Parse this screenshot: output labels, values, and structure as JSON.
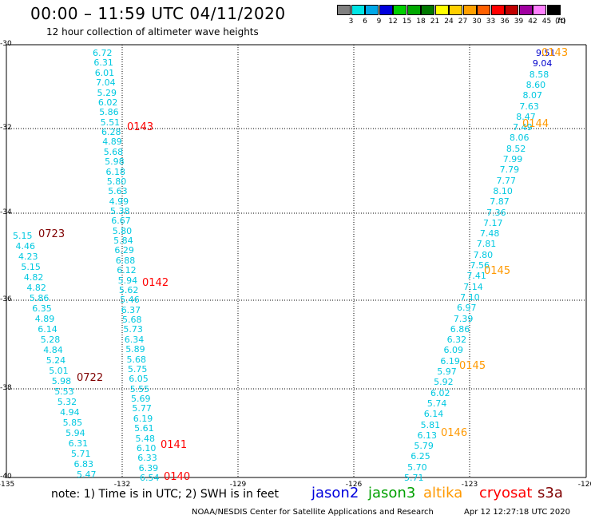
{
  "header": {
    "title": "00:00 – 11:59 UTC 04/11/2020",
    "subtitle": "12 hour collection of altimeter wave heights"
  },
  "colorbar": {
    "labels": [
      "3",
      "6",
      "9",
      "12",
      "15",
      "18",
      "21",
      "24",
      "27",
      "30",
      "33",
      "36",
      "39",
      "42",
      "45",
      "70"
    ],
    "unit": "(ft)",
    "colors": [
      "#808080",
      "#00e5e5",
      "#00a8e8",
      "#0000dd",
      "#00d000",
      "#00a800",
      "#007800",
      "#ffff00",
      "#ffd000",
      "#ffa000",
      "#ff6000",
      "#ff0000",
      "#c00000",
      "#a000a0",
      "#ff80ff",
      "#000000"
    ]
  },
  "axes": {
    "y_labels": [
      "-30",
      "-32",
      "-34",
      "-36",
      "-38",
      "-40"
    ],
    "x_labels": [
      "-135",
      "-132",
      "-129",
      "-126",
      "-123",
      "-120"
    ]
  },
  "tracks": [
    {
      "name": "track-1",
      "color": "#00c8e0",
      "values": [
        "6.72",
        "6.31",
        "6.01",
        "7.04",
        "5.29",
        "6.02",
        "5.86",
        "5.51",
        "6.28",
        "4.89",
        "5.68",
        "5.98",
        "6.18",
        "5.80",
        "5.63",
        "4.99",
        "5.38",
        "6.67",
        "5.80",
        "5.84",
        "6.29",
        "6.88",
        "6.12",
        "5.94",
        "5.62",
        "5.46",
        "6.37",
        "5.68",
        "5.73",
        "6.34",
        "5.89",
        "5.68",
        "5.75",
        "6.05",
        "5.55",
        "5.69",
        "5.77",
        "6.19",
        "5.61",
        "5.48",
        "6.10",
        "6.33",
        "6.39",
        "6.54"
      ]
    },
    {
      "name": "track-2",
      "color": "#00c8e0",
      "values": [
        "5.15",
        "4.46",
        "4.23",
        "5.15",
        "4.82",
        "4.82",
        "5.86",
        "6.35",
        "4.89",
        "6.14",
        "5.28",
        "4.84",
        "5.24",
        "5.01",
        "5.98",
        "5.53",
        "5.32",
        "4.94",
        "5.85",
        "5.94",
        "6.31",
        "5.71",
        "6.83",
        "5.47"
      ]
    },
    {
      "name": "track-3",
      "color": "#00c8e0",
      "values": [
        "9.51",
        "9.04",
        "8.58",
        "8.60",
        "8.07",
        "7.63",
        "8.47",
        "7.49",
        "8.06",
        "8.52",
        "7.99",
        "7.79",
        "7.77",
        "8.10",
        "7.87",
        "7.36",
        "7.17",
        "7.48",
        "7.81",
        "7.80",
        "7.56",
        "7.41",
        "7.14",
        "7.10",
        "6.97",
        "7.39",
        "6.86",
        "6.32",
        "6.09",
        "6.19",
        "5.97",
        "5.92",
        "6.02",
        "5.74",
        "6.14",
        "5.81",
        "6.13",
        "5.79",
        "6.25",
        "5.70",
        "5.71"
      ]
    }
  ],
  "time_tags": [
    {
      "label": "0143",
      "color": "#ff0000"
    },
    {
      "label": "0142",
      "color": "#ff0000"
    },
    {
      "label": "0141",
      "color": "#ff0000"
    },
    {
      "label": "0140",
      "color": "#ff0000"
    },
    {
      "label": "0723",
      "color": "#800000"
    },
    {
      "label": "0722",
      "color": "#800000"
    },
    {
      "label": "0143",
      "color": "#ff9900"
    },
    {
      "label": "0144",
      "color": "#ff9900"
    },
    {
      "label": "0145",
      "color": "#ff9900"
    },
    {
      "label": "0145",
      "color": "#ff9900"
    },
    {
      "label": "0146",
      "color": "#ff9900"
    }
  ],
  "footer": {
    "note": "note: 1) Time is in UTC; 2) SWH is in feet",
    "missions": [
      {
        "label": "jason2",
        "color": "#0000dd"
      },
      {
        "label": "jason3",
        "color": "#00a000"
      },
      {
        "label": "altika",
        "color": "#ff9900"
      },
      {
        "label": "cryosat",
        "color": "#ff0000"
      },
      {
        "label": "s3a",
        "color": "#800000"
      }
    ],
    "credit": "NOAA/NESDIS Center for Satellite Applications and Research",
    "timestamp": "Apr 12 12:27:18 UTC 2020"
  }
}
